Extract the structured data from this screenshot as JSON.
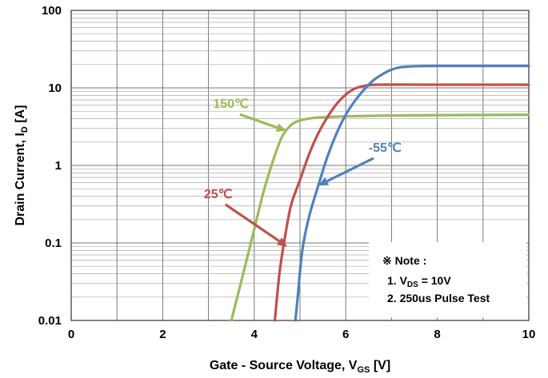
{
  "chart_data": {
    "type": "line",
    "xlabel": "Gate - Source Voltage, V",
    "xlabel_sub": "GS",
    "xlabel_unit": " [V]",
    "ylabel": "Drain Current, I",
    "ylabel_sub": "D",
    "ylabel_unit": " [A]",
    "xlim": [
      0,
      10
    ],
    "ylim": [
      0.01,
      100
    ],
    "yscale": "log",
    "grid": true,
    "x_ticks": [
      0,
      2,
      4,
      6,
      8,
      10
    ],
    "x_tick_labels": [
      "0",
      "2",
      "4",
      "6",
      "8",
      "10"
    ],
    "y_ticks": [
      0.01,
      0.1,
      1,
      10,
      100
    ],
    "y_tick_labels": [
      "0.01",
      "0.1",
      "1",
      "10",
      "100"
    ],
    "series": [
      {
        "name": "150℃",
        "color": "#9bbb59",
        "points": [
          [
            3.5,
            0.01
          ],
          [
            3.8,
            0.05
          ],
          [
            4.0,
            0.15
          ],
          [
            4.2,
            0.45
          ],
          [
            4.4,
            1.1
          ],
          [
            4.6,
            2.3
          ],
          [
            4.8,
            3.3
          ],
          [
            5.0,
            3.8
          ],
          [
            5.3,
            4.1
          ],
          [
            5.6,
            4.2
          ],
          [
            6.0,
            4.3
          ],
          [
            7.0,
            4.4
          ],
          [
            8.0,
            4.45
          ],
          [
            10.0,
            4.5
          ]
        ]
      },
      {
        "name": "25℃",
        "color": "#c0504d",
        "points": [
          [
            4.45,
            0.01
          ],
          [
            4.55,
            0.04
          ],
          [
            4.65,
            0.1
          ],
          [
            4.8,
            0.3
          ],
          [
            5.0,
            0.65
          ],
          [
            5.2,
            1.4
          ],
          [
            5.4,
            2.6
          ],
          [
            5.6,
            4.2
          ],
          [
            5.8,
            6.2
          ],
          [
            6.0,
            8.2
          ],
          [
            6.2,
            9.8
          ],
          [
            6.4,
            10.6
          ],
          [
            6.7,
            11.0
          ],
          [
            8.0,
            11.0
          ],
          [
            10.0,
            11.0
          ]
        ]
      },
      {
        "name": "-55℃",
        "color": "#4f81bd",
        "points": [
          [
            4.9,
            0.01
          ],
          [
            4.95,
            0.02
          ],
          [
            5.05,
            0.08
          ],
          [
            5.2,
            0.22
          ],
          [
            5.4,
            0.55
          ],
          [
            5.6,
            1.3
          ],
          [
            5.8,
            2.6
          ],
          [
            6.0,
            4.5
          ],
          [
            6.2,
            6.8
          ],
          [
            6.4,
            9.5
          ],
          [
            6.6,
            12.5
          ],
          [
            6.8,
            15.0
          ],
          [
            7.0,
            17.2
          ],
          [
            7.2,
            18.5
          ],
          [
            7.5,
            19.0
          ],
          [
            8.0,
            19.2
          ],
          [
            10.0,
            19.2
          ]
        ]
      }
    ],
    "annotations": [
      {
        "text": "150℃",
        "color": "#9bbb59",
        "label_at": [
          3.1,
          5.5
        ],
        "arrow_to": [
          4.7,
          2.8
        ]
      },
      {
        "text": "25℃",
        "color": "#c0504d",
        "label_at": [
          2.9,
          0.38
        ],
        "arrow_to": [
          4.72,
          0.09
        ]
      },
      {
        "text": "-55℃",
        "color": "#4f81bd",
        "label_at": [
          6.5,
          1.5
        ],
        "arrow_to": [
          5.4,
          0.55
        ]
      }
    ],
    "note": {
      "title": "※ Note :",
      "line1_prefix": "1. V",
      "line1_sub": "DS",
      "line1_suffix": " = 10V",
      "line2": "2. 250us Pulse Test"
    }
  }
}
